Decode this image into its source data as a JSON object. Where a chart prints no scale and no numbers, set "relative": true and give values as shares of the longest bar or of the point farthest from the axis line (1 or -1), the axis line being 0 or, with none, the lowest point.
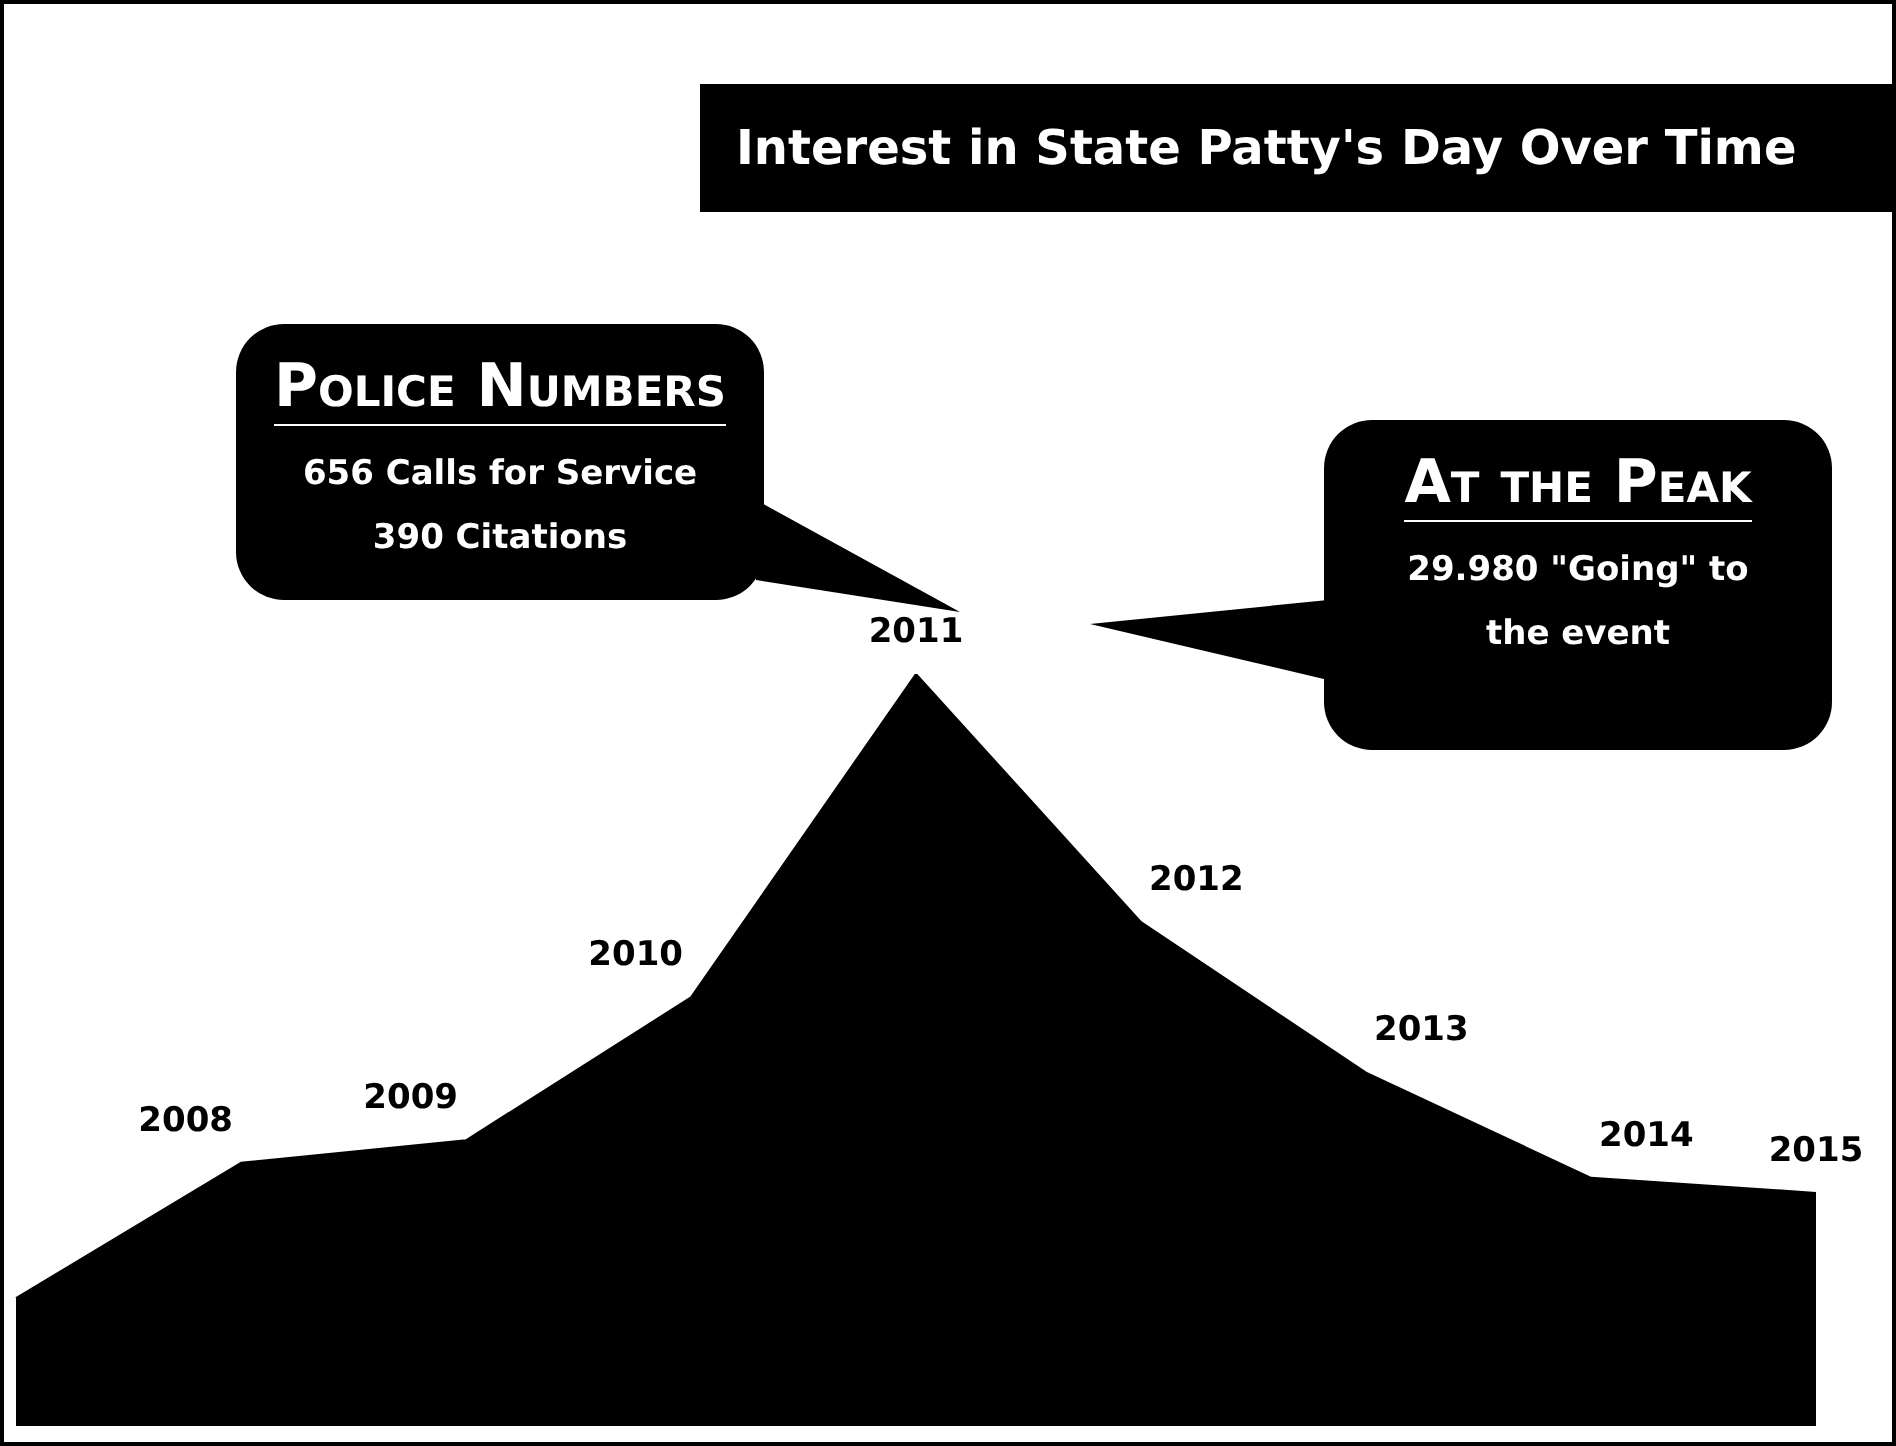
{
  "chart_data": {
    "type": "area",
    "relative": true,
    "title": "Interest in State Patty's Day Over Time",
    "categories": [
      null,
      "2008",
      "2009",
      "2010",
      "2011",
      "2012",
      "2013",
      "2014",
      "2015"
    ],
    "series": [
      {
        "color": "#000000",
        "values": [
          0.17,
          0.35,
          0.38,
          0.57,
          1,
          0.67,
          0.47,
          0.33,
          0.31
        ]
      }
    ],
    "annotations": [
      "Police Numbers",
      "656 Calls for Service",
      "390 Citations",
      "At the Peak",
      "29.980 \"Going\" to the event"
    ]
  }
}
